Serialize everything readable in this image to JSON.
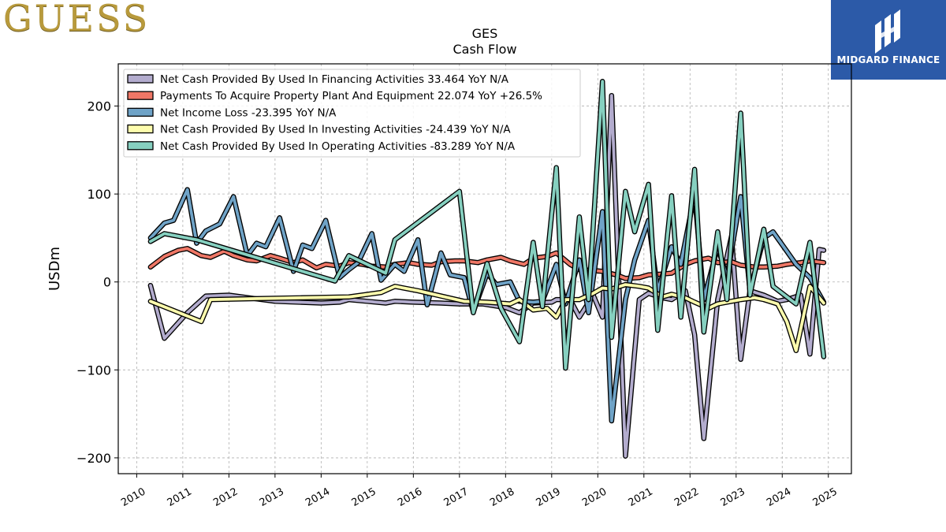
{
  "branding": {
    "left_logo_text": "GUESS",
    "right_logo_text": "MIDGARD FINANCE",
    "right_logo_color": "#2c5aa8"
  },
  "chart_data": {
    "type": "line",
    "title": "GES",
    "subtitle": "Cash Flow",
    "ylabel": "USDm",
    "xlabel": "",
    "xlim": [
      2009.6,
      2025.5
    ],
    "ylim": [
      -218,
      248
    ],
    "yticks": [
      -200,
      -100,
      0,
      100,
      200
    ],
    "ytick_labels": [
      "−200",
      "−100",
      "0",
      "100",
      "200"
    ],
    "xticks": [
      2010,
      2011,
      2012,
      2013,
      2014,
      2015,
      2016,
      2017,
      2018,
      2019,
      2020,
      2021,
      2022,
      2023,
      2024,
      2025
    ],
    "xtick_labels": [
      "2010",
      "2011",
      "2012",
      "2013",
      "2014",
      "2015",
      "2016",
      "2017",
      "2018",
      "2019",
      "2020",
      "2021",
      "2022",
      "2023",
      "2024",
      "2025"
    ],
    "grid": true,
    "legend_position": "top-left",
    "series": [
      {
        "name": "Net Cash Provided By Used In Financing Activities",
        "legend": "Net Cash Provided By Used In Financing Activities  33.464 YoY N/A",
        "color": "#b3acce",
        "points": [
          [
            2010.3,
            -4
          ],
          [
            2010.6,
            -64
          ],
          [
            2011.1,
            -35
          ],
          [
            2011.5,
            -16
          ],
          [
            2012.0,
            -15
          ],
          [
            2013.0,
            -22
          ],
          [
            2014.0,
            -24
          ],
          [
            2014.4,
            -23
          ],
          [
            2014.6,
            -20
          ],
          [
            2015.0,
            -22
          ],
          [
            2015.4,
            -24
          ],
          [
            2015.6,
            -22
          ],
          [
            2016.0,
            -23
          ],
          [
            2016.6,
            -24
          ],
          [
            2017.0,
            -25
          ],
          [
            2017.5,
            -25
          ],
          [
            2018.0,
            -29
          ],
          [
            2018.3,
            -35
          ],
          [
            2018.6,
            -24
          ],
          [
            2019.0,
            -23
          ],
          [
            2019.1,
            -20
          ],
          [
            2019.4,
            -20
          ],
          [
            2019.6,
            -40
          ],
          [
            2019.9,
            -15
          ],
          [
            2020.1,
            -40
          ],
          [
            2020.3,
            212
          ],
          [
            2020.6,
            -198
          ],
          [
            2020.9,
            -20
          ],
          [
            2021.1,
            -13
          ],
          [
            2021.4,
            -18
          ],
          [
            2021.6,
            -20
          ],
          [
            2021.9,
            -10
          ],
          [
            2022.1,
            -60
          ],
          [
            2022.3,
            -178
          ],
          [
            2022.6,
            -20
          ],
          [
            2022.9,
            52
          ],
          [
            2023.1,
            -88
          ],
          [
            2023.3,
            -10
          ],
          [
            2023.6,
            -15
          ],
          [
            2023.9,
            -22
          ],
          [
            2024.1,
            -20
          ],
          [
            2024.4,
            -15
          ],
          [
            2024.6,
            -82
          ],
          [
            2024.8,
            37
          ],
          [
            2024.9,
            36
          ]
        ]
      },
      {
        "name": "Payments To Acquire Property Plant And Equipment",
        "legend": "Payments To Acquire Property Plant And Equipment  22.074 YoY +26.5%",
        "color": "#ef7766",
        "points": [
          [
            2010.3,
            17
          ],
          [
            2010.6,
            29
          ],
          [
            2010.9,
            36
          ],
          [
            2011.1,
            38
          ],
          [
            2011.4,
            30
          ],
          [
            2011.6,
            28
          ],
          [
            2011.9,
            35
          ],
          [
            2012.1,
            30
          ],
          [
            2012.4,
            25
          ],
          [
            2012.6,
            24
          ],
          [
            2012.9,
            30
          ],
          [
            2013.1,
            27
          ],
          [
            2013.4,
            22
          ],
          [
            2013.6,
            25
          ],
          [
            2013.9,
            16
          ],
          [
            2014.1,
            20
          ],
          [
            2014.4,
            18
          ],
          [
            2014.6,
            22
          ],
          [
            2014.9,
            20
          ],
          [
            2015.1,
            18
          ],
          [
            2015.4,
            17
          ],
          [
            2015.6,
            20
          ],
          [
            2015.9,
            22
          ],
          [
            2016.1,
            20
          ],
          [
            2016.4,
            19
          ],
          [
            2016.6,
            23
          ],
          [
            2016.9,
            24
          ],
          [
            2017.1,
            24
          ],
          [
            2017.4,
            22
          ],
          [
            2017.6,
            25
          ],
          [
            2017.9,
            28
          ],
          [
            2018.1,
            24
          ],
          [
            2018.4,
            20
          ],
          [
            2018.6,
            27
          ],
          [
            2018.9,
            29
          ],
          [
            2019.1,
            33
          ],
          [
            2019.4,
            20
          ],
          [
            2019.6,
            14
          ],
          [
            2019.9,
            13
          ],
          [
            2020.1,
            12
          ],
          [
            2020.4,
            8
          ],
          [
            2020.6,
            4
          ],
          [
            2020.9,
            5
          ],
          [
            2021.1,
            8
          ],
          [
            2021.4,
            9
          ],
          [
            2021.6,
            10
          ],
          [
            2021.9,
            20
          ],
          [
            2022.1,
            24
          ],
          [
            2022.4,
            27
          ],
          [
            2022.6,
            22
          ],
          [
            2022.9,
            23
          ],
          [
            2023.1,
            19
          ],
          [
            2023.4,
            17
          ],
          [
            2023.6,
            17
          ],
          [
            2023.9,
            18
          ],
          [
            2024.1,
            20
          ],
          [
            2024.4,
            22
          ],
          [
            2024.6,
            24
          ],
          [
            2024.9,
            22
          ]
        ]
      },
      {
        "name": "Net Income Loss",
        "legend": "Net Income Loss  -23.395 YoY N/A",
        "color": "#6fa3c7",
        "points": [
          [
            2010.3,
            50
          ],
          [
            2010.6,
            67
          ],
          [
            2010.8,
            70
          ],
          [
            2011.1,
            105
          ],
          [
            2011.3,
            44
          ],
          [
            2011.5,
            58
          ],
          [
            2011.8,
            66
          ],
          [
            2012.1,
            97
          ],
          [
            2012.4,
            30
          ],
          [
            2012.6,
            44
          ],
          [
            2012.8,
            40
          ],
          [
            2013.1,
            73
          ],
          [
            2013.4,
            12
          ],
          [
            2013.6,
            42
          ],
          [
            2013.8,
            38
          ],
          [
            2014.1,
            70
          ],
          [
            2014.4,
            5
          ],
          [
            2014.6,
            14
          ],
          [
            2014.8,
            22
          ],
          [
            2015.1,
            55
          ],
          [
            2015.3,
            2
          ],
          [
            2015.6,
            20
          ],
          [
            2015.8,
            12
          ],
          [
            2016.1,
            48
          ],
          [
            2016.3,
            -26
          ],
          [
            2016.6,
            33
          ],
          [
            2016.8,
            8
          ],
          [
            2017.1,
            5
          ],
          [
            2017.3,
            -34
          ],
          [
            2017.6,
            10
          ],
          [
            2017.8,
            -3
          ],
          [
            2018.1,
            0
          ],
          [
            2018.3,
            -22
          ],
          [
            2018.6,
            -23
          ],
          [
            2018.8,
            -22
          ],
          [
            2019.1,
            20
          ],
          [
            2019.3,
            -25
          ],
          [
            2019.6,
            25
          ],
          [
            2019.8,
            -35
          ],
          [
            2020.1,
            80
          ],
          [
            2020.3,
            -158
          ],
          [
            2020.6,
            -20
          ],
          [
            2020.8,
            25
          ],
          [
            2021.1,
            70
          ],
          [
            2021.3,
            -10
          ],
          [
            2021.6,
            40
          ],
          [
            2021.8,
            20
          ],
          [
            2022.1,
            100
          ],
          [
            2022.3,
            -20
          ],
          [
            2022.6,
            40
          ],
          [
            2022.8,
            5
          ],
          [
            2023.1,
            97
          ],
          [
            2023.3,
            -10
          ],
          [
            2023.6,
            50
          ],
          [
            2023.8,
            57
          ],
          [
            2024.1,
            35
          ],
          [
            2024.3,
            20
          ],
          [
            2024.6,
            5
          ],
          [
            2024.9,
            -23
          ]
        ]
      },
      {
        "name": "Net Cash Provided By Used In Investing Activities",
        "legend": "Net Cash Provided By Used In Investing Activities  -24.439 YoY N/A",
        "color": "#fdfcad",
        "points": [
          [
            2010.3,
            -22
          ],
          [
            2011.4,
            -45
          ],
          [
            2011.6,
            -20
          ],
          [
            2012.6,
            -19
          ],
          [
            2013.6,
            -18
          ],
          [
            2014.6,
            -17
          ],
          [
            2015.3,
            -12
          ],
          [
            2015.6,
            -5
          ],
          [
            2016.1,
            -10
          ],
          [
            2016.6,
            -16
          ],
          [
            2017.1,
            -22
          ],
          [
            2017.6,
            -23
          ],
          [
            2018.1,
            -25
          ],
          [
            2018.3,
            -20
          ],
          [
            2018.6,
            -32
          ],
          [
            2018.9,
            -30
          ],
          [
            2019.1,
            -40
          ],
          [
            2019.3,
            -20
          ],
          [
            2019.6,
            -20
          ],
          [
            2019.9,
            -13
          ],
          [
            2020.1,
            -7
          ],
          [
            2020.3,
            -8
          ],
          [
            2020.6,
            -3
          ],
          [
            2020.9,
            -5
          ],
          [
            2021.1,
            -7
          ],
          [
            2021.4,
            -17
          ],
          [
            2021.6,
            -14
          ],
          [
            2021.9,
            -18
          ],
          [
            2022.1,
            -23
          ],
          [
            2022.4,
            -30
          ],
          [
            2022.6,
            -25
          ],
          [
            2022.9,
            -22
          ],
          [
            2023.1,
            -20
          ],
          [
            2023.4,
            -18
          ],
          [
            2023.6,
            -20
          ],
          [
            2023.9,
            -25
          ],
          [
            2024.1,
            -45
          ],
          [
            2024.3,
            -78
          ],
          [
            2024.6,
            -5
          ],
          [
            2024.9,
            -24
          ]
        ]
      },
      {
        "name": "Net Cash Provided By Used In Operating Activities",
        "legend": "Net Cash Provided By Used In Operating Activities  -83.289 YoY N/A",
        "color": "#86d0c0",
        "points": [
          [
            2010.3,
            46
          ],
          [
            2010.6,
            55
          ],
          [
            2011.3,
            48
          ],
          [
            2014.3,
            1
          ],
          [
            2014.6,
            30
          ],
          [
            2015.4,
            10
          ],
          [
            2015.6,
            48
          ],
          [
            2017.0,
            103
          ],
          [
            2017.3,
            -35
          ],
          [
            2017.6,
            21
          ],
          [
            2017.9,
            -30
          ],
          [
            2018.3,
            -68
          ],
          [
            2018.6,
            45
          ],
          [
            2018.8,
            -28
          ],
          [
            2019.1,
            130
          ],
          [
            2019.3,
            -98
          ],
          [
            2019.6,
            74
          ],
          [
            2019.8,
            -20
          ],
          [
            2020.1,
            228
          ],
          [
            2020.3,
            -63
          ],
          [
            2020.6,
            103
          ],
          [
            2020.8,
            57
          ],
          [
            2021.1,
            111
          ],
          [
            2021.3,
            -55
          ],
          [
            2021.6,
            98
          ],
          [
            2021.8,
            -40
          ],
          [
            2022.1,
            128
          ],
          [
            2022.3,
            -57
          ],
          [
            2022.6,
            57
          ],
          [
            2022.8,
            -20
          ],
          [
            2023.1,
            192
          ],
          [
            2023.3,
            -15
          ],
          [
            2023.6,
            60
          ],
          [
            2023.8,
            -5
          ],
          [
            2024.3,
            -25
          ],
          [
            2024.6,
            45
          ],
          [
            2024.9,
            -85
          ]
        ]
      }
    ]
  }
}
